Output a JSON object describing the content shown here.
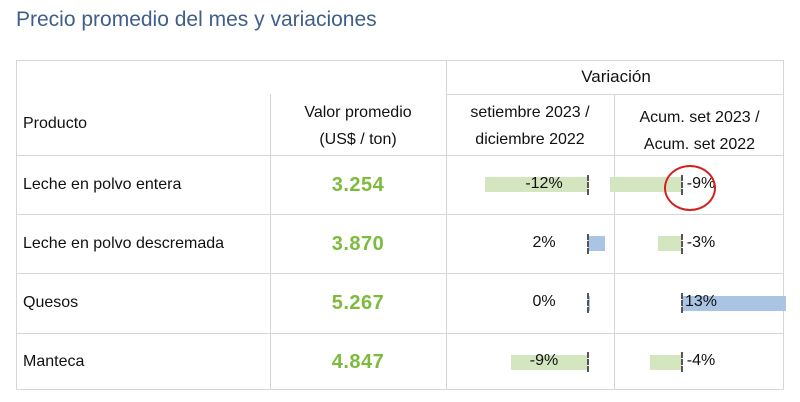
{
  "title": "Precio promedio del mes y variaciones",
  "header": {
    "variacion": "Variación",
    "producto": "Producto",
    "valor_line1": "Valor promedio",
    "valor_line2": "(US$ / ton)",
    "var1_line1": "setiembre 2023 /",
    "var1_line2": "diciembre 2022",
    "var2_line1": "Acum. set 2023 /",
    "var2_line2": "Acum. set 2022"
  },
  "colors": {
    "value_green": "#7dbb3f",
    "negative_bar": "#d3e6bf",
    "positive_bar": "#aac4e4",
    "highlight_circle": "#d42020",
    "title_blue": "#3f5f8a"
  },
  "rows": [
    {
      "product": "Leche en polvo entera",
      "value": "3.254",
      "var1": "-12%",
      "var1_num": -12,
      "var2": "-9%",
      "var2_num": -9,
      "var2_highlighted": true
    },
    {
      "product": "Leche en polvo descremada",
      "value": "3.870",
      "var1": "2%",
      "var1_num": 2,
      "var2": "-3%",
      "var2_num": -3
    },
    {
      "product": "Quesos",
      "value": "5.267",
      "var1": "0%",
      "var1_num": 0,
      "var2": "13%",
      "var2_num": 13
    },
    {
      "product": "Manteca",
      "value": "4.847",
      "var1": "-9%",
      "var1_num": -9,
      "var2": "-4%",
      "var2_num": -4
    }
  ]
}
